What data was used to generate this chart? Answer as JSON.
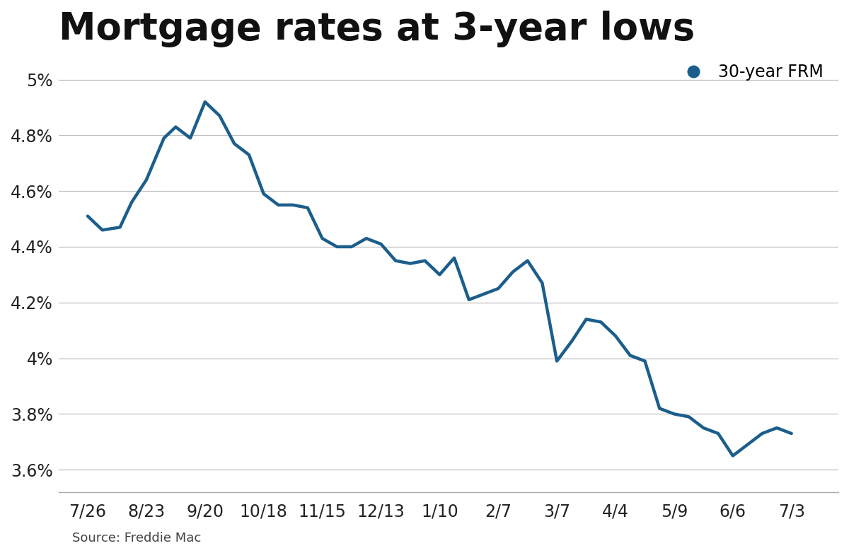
{
  "title": "Mortgage rates at 3-year lows",
  "source": "Source: Freddie Mac",
  "legend_label": "30-year FRM",
  "line_color": "#1b5e8c",
  "background_color": "#ffffff",
  "x_labels": [
    "7/26",
    "8/23",
    "9/20",
    "10/18",
    "11/15",
    "12/13",
    "1/10",
    "2/7",
    "3/7",
    "4/4",
    "5/9",
    "6/6",
    "7/3"
  ],
  "yticks": [
    3.6,
    3.8,
    4.0,
    4.2,
    4.4,
    4.6,
    4.8,
    5.0
  ],
  "ylim": [
    3.52,
    5.08
  ],
  "title_fontsize": 38,
  "tick_fontsize": 17,
  "legend_fontsize": 17,
  "source_fontsize": 13,
  "x_data": [
    0,
    0.25,
    0.55,
    0.75,
    1.0,
    1.3,
    1.5,
    1.75,
    2.0,
    2.25,
    2.5,
    2.75,
    3.0,
    3.25,
    3.5,
    3.75,
    4.0,
    4.25,
    4.5,
    4.75,
    5.0,
    5.25,
    5.5,
    5.75,
    6.0,
    6.25,
    6.5,
    6.75,
    7.0,
    7.25,
    7.5,
    7.75,
    8.0,
    8.25,
    8.5,
    8.75,
    9.0,
    9.25,
    9.5,
    9.75,
    10.0,
    10.25,
    10.5,
    10.75,
    11.0,
    11.25,
    11.5,
    11.75,
    12.0
  ],
  "y_data": [
    4.51,
    4.46,
    4.47,
    4.56,
    4.64,
    4.79,
    4.83,
    4.79,
    4.92,
    4.87,
    4.77,
    4.73,
    4.59,
    4.55,
    4.55,
    4.54,
    4.43,
    4.4,
    4.4,
    4.43,
    4.41,
    4.35,
    4.34,
    4.35,
    4.3,
    4.36,
    4.21,
    4.23,
    4.25,
    4.31,
    4.35,
    4.27,
    3.99,
    4.06,
    4.14,
    4.13,
    4.08,
    4.01,
    3.99,
    3.82,
    3.8,
    3.79,
    3.75,
    3.73,
    3.65,
    3.69,
    3.73,
    3.75,
    3.73
  ]
}
